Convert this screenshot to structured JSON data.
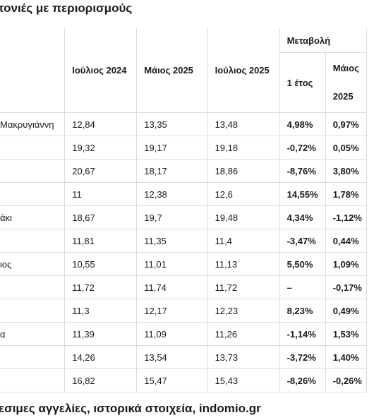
{
  "title": "τονιές με περιορισμούς",
  "footer": "εσιμες αγγελίες, ιστορικά στοιχεία, indomio.gr",
  "table": {
    "headers": {
      "col1": "Ιούλιος 2024",
      "col2": "Μάιος 2025",
      "col3": "Ιούλιος 2025",
      "change_group": "Μεταβολή",
      "change_year": "1 έτος",
      "change_may_line1": "Μάιος",
      "change_may_line2": "2025"
    },
    "rows": [
      {
        "name": "Μακρυγιάννη",
        "v2024": "12,84",
        "v_may": "13,35",
        "v_jul": "13,48",
        "chg_year": "4,98%",
        "chg_may": "0,97%"
      },
      {
        "name": "",
        "v2024": "19,32",
        "v_may": "19,17",
        "v_jul": "19,18",
        "chg_year": "-0,72%",
        "chg_may": "0,05%"
      },
      {
        "name": "",
        "v2024": "20,67",
        "v_may": "18,17",
        "v_jul": "18,86",
        "chg_year": "-8,76%",
        "chg_may": "3,80%"
      },
      {
        "name": "",
        "v2024": "11",
        "v_may": "12,38",
        "v_jul": "12,6",
        "chg_year": "14,55%",
        "chg_may": "1,78%"
      },
      {
        "name": "άκι",
        "v2024": "18,67",
        "v_may": "19,7",
        "v_jul": "19,48",
        "chg_year": "4,34%",
        "chg_may": "-1,12%"
      },
      {
        "name": "",
        "v2024": "11,81",
        "v_may": "11,35",
        "v_jul": "11,4",
        "chg_year": "-3,47%",
        "chg_may": "0,44%"
      },
      {
        "name": "ιος",
        "v2024": "10,55",
        "v_may": "11,01",
        "v_jul": "11,13",
        "chg_year": "5,50%",
        "chg_may": "1,09%"
      },
      {
        "name": "",
        "v2024": "11,72",
        "v_may": "11,74",
        "v_jul": "11,72",
        "chg_year": "–",
        "chg_may": "-0,17%"
      },
      {
        "name": "",
        "v2024": "11,3",
        "v_may": "12,17",
        "v_jul": "12,23",
        "chg_year": "8,23%",
        "chg_may": "0,49%"
      },
      {
        "name": "α",
        "v2024": "11,39",
        "v_may": "11,09",
        "v_jul": "11,26",
        "chg_year": "-1,14%",
        "chg_may": "1,53%"
      },
      {
        "name": "",
        "v2024": "14,26",
        "v_may": "13,54",
        "v_jul": "13,73",
        "chg_year": "-3,72%",
        "chg_may": "1,40%"
      },
      {
        "name": "",
        "v2024": "16,82",
        "v_may": "15,47",
        "v_jul": "15,43",
        "chg_year": "-8,26%",
        "chg_may": "-0,26%"
      }
    ]
  }
}
